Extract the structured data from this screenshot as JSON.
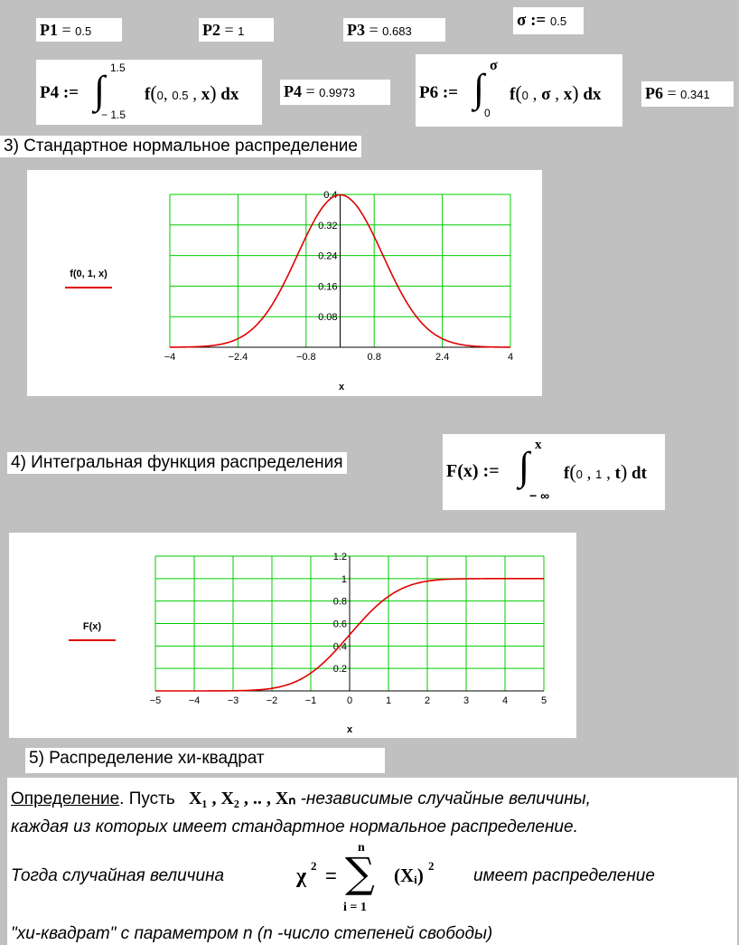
{
  "top": {
    "p1": {
      "name": "P1",
      "op": "=",
      "value": "0.5"
    },
    "p2": {
      "name": "P2",
      "op": "=",
      "value": "1"
    },
    "p3": {
      "name": "P3",
      "op": "=",
      "value": "0.683"
    },
    "sigma": {
      "name": "σ",
      "op": ":=",
      "value": "0.5"
    },
    "p4def": {
      "name": "P4",
      "op": ":=",
      "upper": "1.5",
      "lower": "− 1.5",
      "f": "f",
      "a": "0",
      "b": "0.5",
      "x": "x",
      "dx": "dx"
    },
    "p4res": {
      "name": "P4",
      "op": "=",
      "value": "0.9973"
    },
    "p6def": {
      "name": "P6",
      "op": ":=",
      "upper": "σ",
      "lower": "0",
      "f": "f",
      "a": "0",
      "b": "σ",
      "x": "x",
      "dx": "dx"
    },
    "p6res": {
      "name": "P6",
      "op": "=",
      "value": "0.341"
    }
  },
  "section3": {
    "heading": "3) Стандартное нормальное распределение"
  },
  "section4": {
    "heading": "4) Интегральная функция распределения",
    "formula": {
      "lhs": "F(x) :=",
      "upper": "x",
      "lower": "− ∞",
      "f": "f",
      "a": "0",
      "b": "1",
      "t": "t",
      "dt": "dt"
    }
  },
  "section5": {
    "heading": "5) Распределение хи-квадрат"
  },
  "definition": {
    "word": "Определение",
    "l1a": ". Пусть",
    "vars": "X₁ , X₂ , .. , Xₙ",
    "l1b": "-независимые случайные величины,",
    "l2": "каждая из которых имеет стандартное нормальное распределение.",
    "l3a": "Тогда случайная величина",
    "chi": "χ",
    "sup2": "2",
    "eq": "=",
    "sum_top": "n",
    "sum_sign": "∑",
    "sum_bottom": "i = 1",
    "xi": "(Xᵢ)",
    "l3b": "имеет распределение",
    "l4": "\"хи-квадрат\" с параметром n  (n -число степеней свободы)"
  },
  "chart_data": [
    {
      "type": "line",
      "ylabel": "f(0, 1, x)",
      "xlabel": "x",
      "x_ticks": [
        "-4",
        "-2.4",
        "-0.8",
        "0.8",
        "2.4",
        "4"
      ],
      "y_ticks": [
        "0.08",
        "0.16",
        "0.24",
        "0.32",
        "0.4"
      ],
      "xlim": [
        -4,
        4
      ],
      "ylim": [
        0,
        0.4
      ],
      "grid": true,
      "series": [
        {
          "function": "normal_pdf",
          "mu": 0,
          "sigma": 1,
          "color": "#e00000"
        }
      ]
    },
    {
      "type": "line",
      "ylabel": "F(x)",
      "xlabel": "x",
      "x_ticks": [
        "-5",
        "-4",
        "-3",
        "-2",
        "-1",
        "0",
        "1",
        "2",
        "3",
        "4",
        "5"
      ],
      "y_ticks": [
        "0.2",
        "0.4",
        "0.6",
        "0.8",
        "1",
        "1.2"
      ],
      "xlim": [
        -5,
        5
      ],
      "ylim": [
        0,
        1.2
      ],
      "grid": true,
      "series": [
        {
          "function": "normal_cdf",
          "mu": 0,
          "sigma": 1,
          "color": "#e00000"
        }
      ]
    }
  ]
}
